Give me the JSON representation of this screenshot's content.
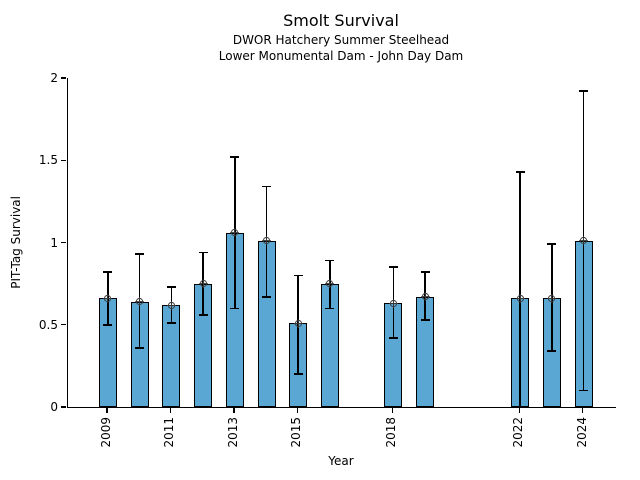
{
  "chart_data": {
    "type": "bar",
    "title": "Smolt Survival",
    "subtitle_line1": "DWOR Hatchery Summer Steelhead",
    "subtitle_line2": "Lower Monumental Dam - John Day Dam",
    "xlabel": "Year",
    "ylabel": "PIT-Tag Survival",
    "ylim": [
      0,
      2
    ],
    "yticks": [
      0,
      0.5,
      1,
      1.5,
      2
    ],
    "xlim": [
      2007.74,
      2025.02
    ],
    "xticks": [
      2009,
      2011,
      2013,
      2015,
      2018,
      2022,
      2024
    ],
    "grid": false,
    "legend": "none",
    "bar_color": "#5AA7D4",
    "bar_edge_color": "#000000",
    "error_bar_color": "#000000",
    "marker": "circle-cross",
    "series": [
      {
        "name": "PIT-Tag Survival",
        "points": [
          {
            "year": 2009,
            "value": 0.66,
            "ci_low": 0.5,
            "ci_high": 0.82
          },
          {
            "year": 2010,
            "value": 0.64,
            "ci_low": 0.36,
            "ci_high": 0.93
          },
          {
            "year": 2011,
            "value": 0.62,
            "ci_low": 0.51,
            "ci_high": 0.73
          },
          {
            "year": 2012,
            "value": 0.75,
            "ci_low": 0.56,
            "ci_high": 0.94
          },
          {
            "year": 2013,
            "value": 1.06,
            "ci_low": 0.6,
            "ci_high": 1.52
          },
          {
            "year": 2014,
            "value": 1.01,
            "ci_low": 0.67,
            "ci_high": 1.34
          },
          {
            "year": 2015,
            "value": 0.51,
            "ci_low": 0.2,
            "ci_high": 0.8
          },
          {
            "year": 2016,
            "value": 0.75,
            "ci_low": 0.6,
            "ci_high": 0.89
          },
          {
            "year": 2018,
            "value": 0.63,
            "ci_low": 0.42,
            "ci_high": 0.85
          },
          {
            "year": 2019,
            "value": 0.67,
            "ci_low": 0.53,
            "ci_high": 0.82
          },
          {
            "year": 2022,
            "value": 0.66,
            "ci_low": 0.0,
            "ci_high": 1.43
          },
          {
            "year": 2023,
            "value": 0.66,
            "ci_low": 0.34,
            "ci_high": 0.99
          },
          {
            "year": 2024,
            "value": 1.01,
            "ci_low": 0.1,
            "ci_high": 1.92
          }
        ]
      }
    ]
  }
}
